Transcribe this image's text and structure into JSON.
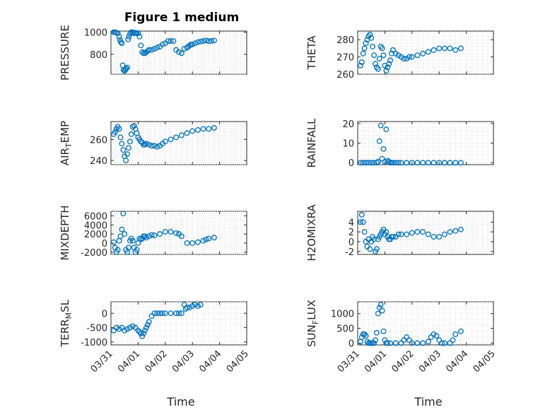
{
  "figure": {
    "title": "Figure 1 medium",
    "marker_color": "#0072BD",
    "x_tick_labels": [
      "03/31",
      "04/01",
      "04/02",
      "04/03",
      "04/04",
      "04/05"
    ],
    "x_axis_label": "Time"
  },
  "chart_data": [
    {
      "type": "scatter",
      "panel": "PRESSURE",
      "ylabel": "PRESSURE",
      "ylim": [
        620,
        1010
      ],
      "yticks": [
        800,
        1000
      ],
      "ytick_labels": [
        "800",
        "1000"
      ],
      "x": [
        0.1,
        0.15,
        0.2,
        0.25,
        0.3,
        0.33,
        0.36,
        0.4,
        0.43,
        0.46,
        0.5,
        0.53,
        0.56,
        0.6,
        0.63,
        0.66,
        0.7,
        0.75,
        0.8,
        0.85,
        0.9,
        0.95,
        1.0,
        1.05,
        1.1,
        1.15,
        1.2,
        1.25,
        1.3,
        1.35,
        1.4,
        1.5,
        1.6,
        1.7,
        1.8,
        1.9,
        2.0,
        2.1,
        2.2,
        2.3,
        2.4,
        2.5,
        2.6,
        2.7,
        2.8,
        2.85,
        2.9,
        2.95,
        3.0,
        3.1,
        3.2,
        3.3,
        3.4,
        3.5,
        3.6,
        3.7,
        3.8
      ],
      "y": [
        1000,
        1000,
        995,
        990,
        960,
        930,
        910,
        900,
        700,
        660,
        650,
        660,
        670,
        680,
        935,
        960,
        985,
        1000,
        1000,
        990,
        995,
        990,
        990,
        960,
        880,
        820,
        810,
        810,
        820,
        830,
        840,
        840,
        850,
        860,
        870,
        890,
        900,
        920,
        920,
        920,
        840,
        820,
        810,
        850,
        860,
        870,
        880,
        890,
        890,
        900,
        910,
        915,
        920,
        925,
        920,
        920,
        925
      ]
    },
    {
      "type": "scatter",
      "panel": "THETA",
      "ylabel": "THETA",
      "ylim": [
        260,
        285
      ],
      "yticks": [
        260,
        270,
        280
      ],
      "ytick_labels": [
        "260",
        "270",
        "280"
      ],
      "x": [
        0.1,
        0.15,
        0.2,
        0.25,
        0.3,
        0.35,
        0.4,
        0.45,
        0.5,
        0.55,
        0.6,
        0.65,
        0.7,
        0.75,
        0.8,
        0.85,
        0.9,
        0.95,
        1.0,
        1.05,
        1.1,
        1.15,
        1.2,
        1.25,
        1.3,
        1.4,
        1.5,
        1.6,
        1.7,
        1.8,
        1.9,
        2.0,
        2.2,
        2.4,
        2.6,
        2.8,
        3.0,
        3.2,
        3.4,
        3.6,
        3.8
      ],
      "y": [
        265,
        267,
        272,
        275,
        278,
        280,
        282,
        283,
        281,
        276,
        271,
        266,
        264,
        263,
        269,
        276,
        275,
        271,
        265,
        262,
        264,
        266,
        268,
        272,
        274,
        272,
        271,
        270,
        269,
        269,
        270,
        270,
        271,
        272,
        273,
        274,
        275,
        275,
        275,
        274,
        275
      ]
    },
    {
      "type": "scatter",
      "panel": "AIR_TEMP",
      "ylabel": "AIR_TEMP",
      "ylim": [
        236,
        277
      ],
      "yticks": [
        240,
        260
      ],
      "ytick_labels": [
        "240",
        "260"
      ],
      "x": [
        0.1,
        0.15,
        0.2,
        0.25,
        0.3,
        0.35,
        0.4,
        0.45,
        0.5,
        0.55,
        0.6,
        0.65,
        0.7,
        0.75,
        0.8,
        0.85,
        0.9,
        0.95,
        1.0,
        1.05,
        1.1,
        1.15,
        1.2,
        1.25,
        1.3,
        1.4,
        1.5,
        1.6,
        1.7,
        1.8,
        1.9,
        2.0,
        2.2,
        2.4,
        2.6,
        2.8,
        3.0,
        3.2,
        3.4,
        3.6,
        3.8
      ],
      "y": [
        265,
        267,
        270,
        272,
        270,
        262,
        256,
        250,
        244,
        240,
        246,
        252,
        258,
        265,
        272,
        273,
        270,
        266,
        262,
        260,
        258,
        257,
        255,
        255,
        256,
        255,
        254,
        254,
        253,
        254,
        256,
        258,
        260,
        262,
        264,
        266,
        268,
        269,
        270,
        270,
        271
      ]
    },
    {
      "type": "scatter",
      "panel": "RAINFALL",
      "ylabel": "RAINFALL",
      "ylim": [
        -1,
        21
      ],
      "yticks": [
        0,
        10,
        20
      ],
      "ytick_labels": [
        "0",
        "10",
        "20"
      ],
      "x": [
        0.1,
        0.2,
        0.3,
        0.4,
        0.5,
        0.6,
        0.7,
        0.75,
        0.8,
        0.85,
        0.9,
        0.95,
        1.0,
        1.05,
        1.1,
        1.15,
        1.2,
        1.25,
        1.3,
        1.4,
        1.5,
        1.6,
        1.8,
        2.0,
        2.2,
        2.4,
        2.6,
        2.8,
        3.0,
        3.2,
        3.4,
        3.6,
        3.8
      ],
      "y": [
        0,
        0,
        0,
        0,
        0,
        0,
        0,
        0.5,
        11,
        19,
        2,
        7,
        0.5,
        17,
        1,
        0.5,
        0,
        0,
        0,
        0,
        0,
        0,
        0,
        0,
        0,
        0,
        0,
        0,
        0,
        0,
        0,
        0,
        0
      ]
    },
    {
      "type": "scatter",
      "panel": "MIXDEPTH",
      "ylabel": "MIXDEPTH",
      "ylim": [
        -2500,
        7000
      ],
      "yticks": [
        -2000,
        0,
        2000,
        4000,
        6000
      ],
      "ytick_labels": [
        "-2000",
        "0",
        "2000",
        "4000",
        "6000"
      ],
      "x": [
        0.1,
        0.15,
        0.2,
        0.25,
        0.3,
        0.35,
        0.4,
        0.45,
        0.5,
        0.55,
        0.6,
        0.65,
        0.7,
        0.75,
        0.8,
        0.85,
        0.9,
        0.95,
        1.0,
        1.05,
        1.1,
        1.15,
        1.2,
        1.25,
        1.3,
        1.4,
        1.5,
        1.6,
        1.8,
        2.0,
        2.2,
        2.4,
        2.5,
        2.6,
        2.8,
        3.0,
        3.2,
        3.4,
        3.5,
        3.6,
        3.8
      ],
      "y": [
        200,
        -1000,
        -2000,
        -1500,
        500,
        1500,
        3000,
        6500,
        2000,
        -1500,
        -2000,
        -1000,
        500,
        1000,
        500,
        -1000,
        -2000,
        -1500,
        0,
        1000,
        800,
        1000,
        1500,
        1500,
        1200,
        1500,
        1800,
        1700,
        2000,
        2500,
        2500,
        2200,
        2000,
        1500,
        0,
        0,
        200,
        500,
        800,
        1000,
        1200
      ]
    },
    {
      "type": "scatter",
      "panel": "H2OMIXRA",
      "ylabel": "H2OMIXRA",
      "ylim": [
        -2.6,
        6.2
      ],
      "yticks": [
        -2,
        0,
        2,
        4
      ],
      "ytick_labels": [
        "-2",
        "0",
        "2",
        "4"
      ],
      "x": [
        0.1,
        0.15,
        0.2,
        0.25,
        0.3,
        0.35,
        0.4,
        0.45,
        0.5,
        0.55,
        0.6,
        0.65,
        0.7,
        0.75,
        0.8,
        0.85,
        0.9,
        0.95,
        1.0,
        1.05,
        1.1,
        1.15,
        1.2,
        1.25,
        1.3,
        1.4,
        1.5,
        1.6,
        1.8,
        2.0,
        2.2,
        2.4,
        2.6,
        2.8,
        3.0,
        3.2,
        3.4,
        3.6,
        3.8
      ],
      "y": [
        4,
        5.5,
        4,
        2,
        0,
        -1,
        0.5,
        -1.5,
        0,
        1,
        0.5,
        -2,
        -1.5,
        0.5,
        1,
        1.5,
        2,
        2.5,
        1.5,
        2,
        1,
        0.5,
        0.5,
        1,
        1,
        1,
        1.5,
        1.5,
        1.5,
        1.8,
        2,
        2,
        1.5,
        1,
        1,
        1.5,
        2,
        2.2,
        2.5
      ]
    },
    {
      "type": "scatter",
      "panel": "TERR_MSL",
      "ylabel": "TERR_MSL",
      "ylim": [
        -1100,
        400
      ],
      "yticks": [
        -1000,
        -500,
        0
      ],
      "ytick_labels": [
        "-1000",
        "-500",
        "0"
      ],
      "x": [
        0.1,
        0.2,
        0.3,
        0.4,
        0.5,
        0.6,
        0.7,
        0.8,
        0.9,
        1.0,
        1.05,
        1.1,
        1.15,
        1.2,
        1.25,
        1.3,
        1.35,
        1.4,
        1.5,
        1.6,
        1.7,
        1.8,
        1.9,
        2.0,
        2.2,
        2.4,
        2.5,
        2.6,
        2.7,
        2.75,
        2.8,
        2.9,
        3.0,
        3.1,
        3.2,
        3.3
      ],
      "y": [
        -600,
        -500,
        -550,
        -500,
        -600,
        -550,
        -500,
        -450,
        -500,
        -600,
        -650,
        -700,
        -800,
        -700,
        -600,
        -500,
        -400,
        -300,
        -100,
        0,
        0,
        0,
        0,
        0,
        0,
        0,
        0,
        0,
        300,
        150,
        200,
        200,
        250,
        300,
        250,
        300
      ]
    },
    {
      "type": "scatter",
      "panel": "SUN_FLUX",
      "ylabel": "SUN_FLUX",
      "ylim": [
        -60,
        1400
      ],
      "yticks": [
        0,
        500,
        1000
      ],
      "ytick_labels": [
        "0",
        "500",
        "1000"
      ],
      "x": [
        0.1,
        0.15,
        0.2,
        0.25,
        0.3,
        0.35,
        0.4,
        0.45,
        0.5,
        0.55,
        0.6,
        0.65,
        0.7,
        0.75,
        0.8,
        0.85,
        0.9,
        0.95,
        1.0,
        1.05,
        1.1,
        1.2,
        1.4,
        1.6,
        1.7,
        1.8,
        1.9,
        2.0,
        2.2,
        2.4,
        2.6,
        2.7,
        2.8,
        2.9,
        3.0,
        3.1,
        3.2,
        3.4,
        3.5,
        3.6,
        3.8
      ],
      "y": [
        50,
        200,
        300,
        300,
        250,
        50,
        0,
        0,
        0,
        0,
        0,
        100,
        350,
        1000,
        1200,
        1300,
        1100,
        400,
        100,
        0,
        0,
        0,
        0,
        0,
        100,
        200,
        100,
        0,
        0,
        0,
        50,
        200,
        300,
        250,
        100,
        0,
        0,
        0,
        100,
        300,
        400
      ]
    }
  ]
}
